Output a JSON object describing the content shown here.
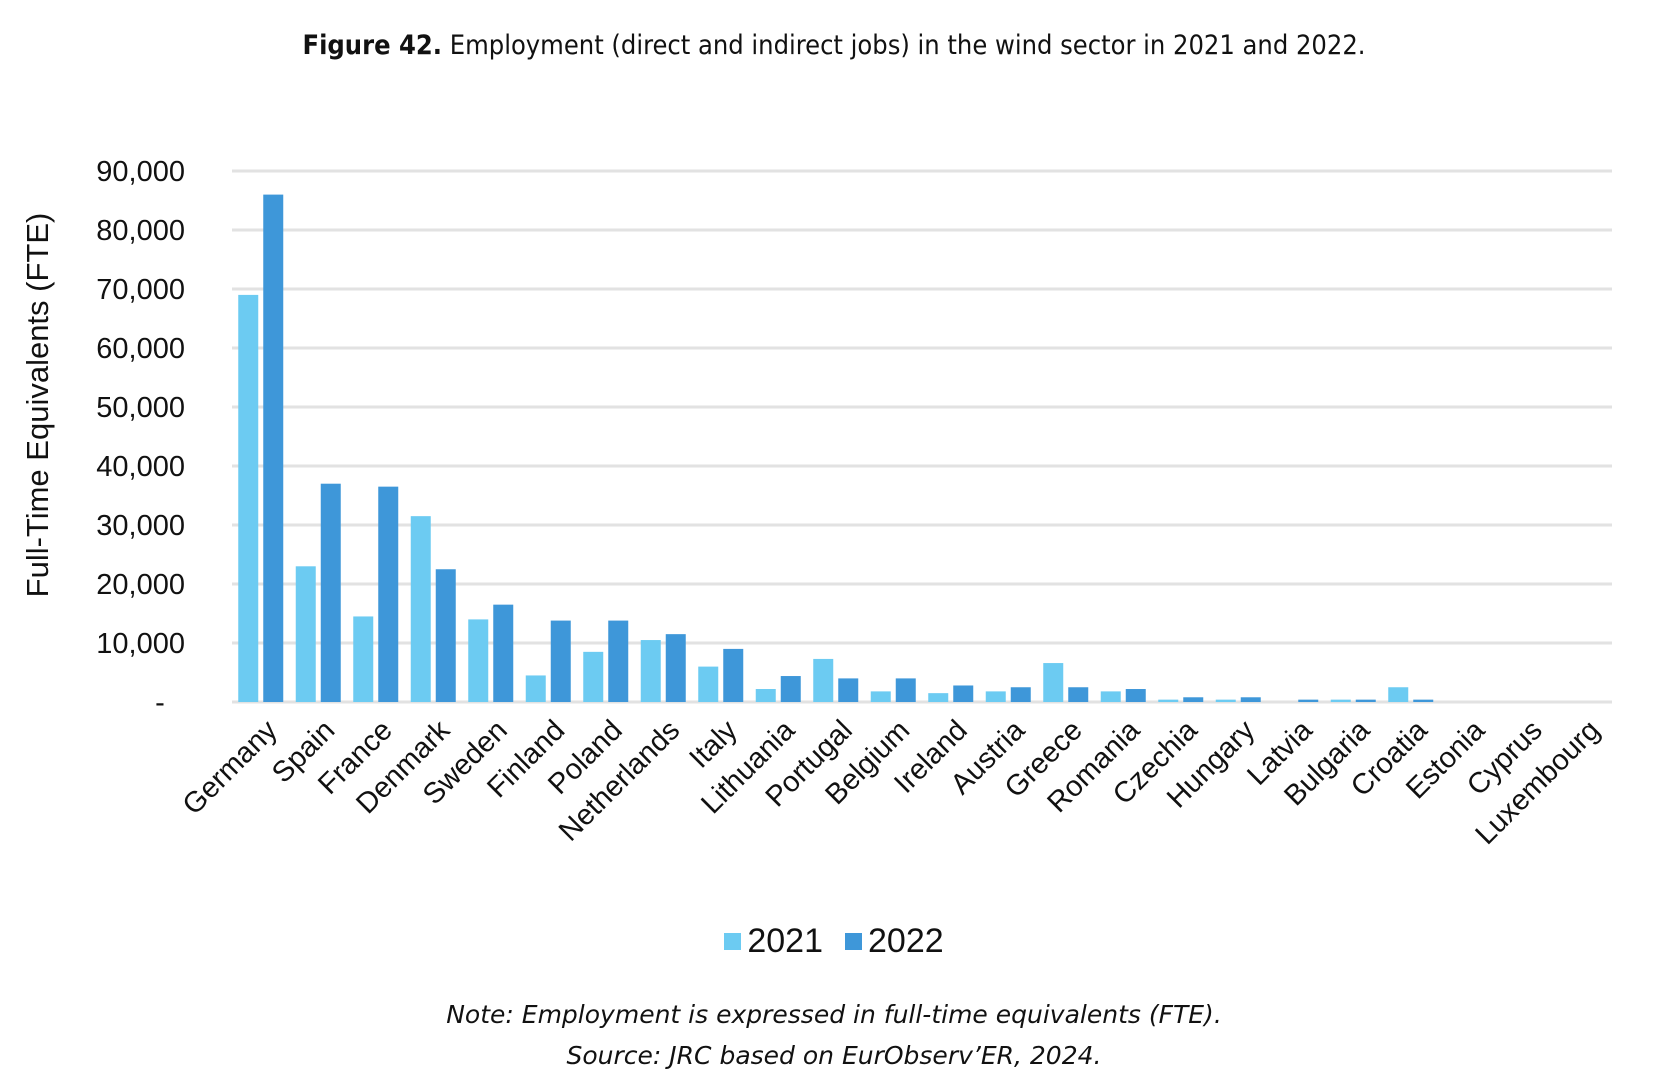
{
  "figure": {
    "label": "Figure 42.",
    "caption": "Employment (direct and indirect jobs) in the wind sector in 2021 and 2022.",
    "note": "Note: Employment is expressed in full-time equivalents (FTE).",
    "source": "Source: JRC based on EurObserv’ER, 2024."
  },
  "chart_data": {
    "type": "bar",
    "title": "Employment (direct and indirect jobs) in the wind sector in 2021 and 2022.",
    "xlabel": "",
    "ylabel": "Full-Time  Equivalents (FTE)",
    "ylim": [
      0,
      90000
    ],
    "yticks": [
      0,
      10000,
      20000,
      30000,
      40000,
      50000,
      60000,
      70000,
      80000,
      90000
    ],
    "ytick_labels": [
      "-",
      "10,000",
      "20,000",
      "30,000",
      "40,000",
      "50,000",
      "60,000",
      "70,000",
      "80,000",
      "90,000"
    ],
    "grid": true,
    "legend_position": "bottom",
    "categories": [
      "Germany",
      "Spain",
      "France",
      "Denmark",
      "Sweden",
      "Finland",
      "Poland",
      "Netherlands",
      "Italy",
      "Lithuania",
      "Portugal",
      "Belgium",
      "Ireland",
      "Austria",
      "Greece",
      "Romania",
      "Czechia",
      "Hungary",
      "Latvia",
      "Bulgaria",
      "Croatia",
      "Estonia",
      "Cyprus",
      "Luxembourg"
    ],
    "series": [
      {
        "name": "2021",
        "color": "#6ccbf2",
        "values": [
          69000,
          23000,
          14500,
          31500,
          14000,
          4500,
          8500,
          10500,
          6000,
          2200,
          7300,
          1800,
          1500,
          1800,
          6600,
          1800,
          400,
          400,
          0,
          400,
          2500,
          0,
          0,
          0
        ]
      },
      {
        "name": "2022",
        "color": "#3e97d9",
        "values": [
          86000,
          37000,
          36500,
          22500,
          16500,
          13800,
          13800,
          11500,
          9000,
          4400,
          4000,
          4000,
          2800,
          2500,
          2500,
          2200,
          800,
          800,
          400,
          400,
          400,
          0,
          0,
          0
        ]
      }
    ]
  }
}
